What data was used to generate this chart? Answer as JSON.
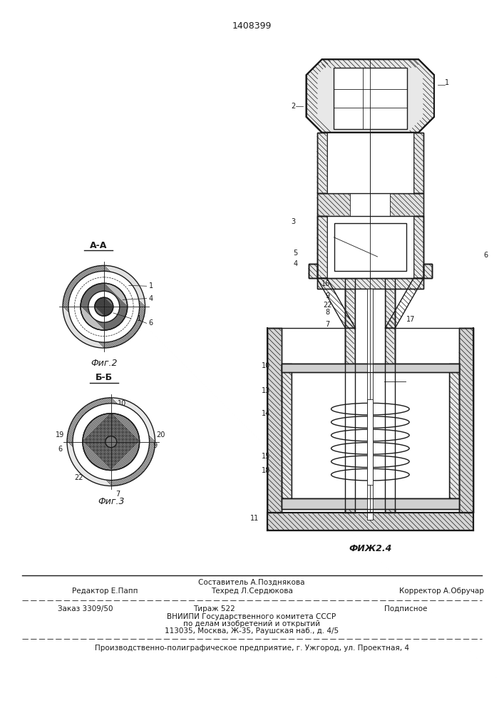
{
  "patent_number": "1408399",
  "bg_color": "#ffffff",
  "line_color": "#1a1a1a",
  "fig2_label": "Фиг.2",
  "fig2_section": "А-А",
  "fig3_label": "Фиг.3",
  "fig3_section": "Б-Б",
  "fig4_label": "ФИЖ2.4",
  "footer_sestavitel": "Составитель А.Позднякова",
  "footer_redaktor": "Редактор Е.Папп",
  "footer_tekhred": "Техред Л.Сердюкова",
  "footer_korrektor": "Корректор А.Обручар",
  "footer_zakaz": "Заказ 3309/50",
  "footer_tirazh": "Тираж 522",
  "footer_podpisnoe": "Подписное",
  "footer_vniip1": "ВНИИПИ Государственного комитета СССР",
  "footer_vniip2": "по делам изобретений и открытий",
  "footer_vniip3": "113035, Москва, Ж-35, Раушская наб., д. 4/5",
  "footer_prod": "Производственно-полиграфическое предприятие, г. Ужгород, ул. Проектная, 4"
}
